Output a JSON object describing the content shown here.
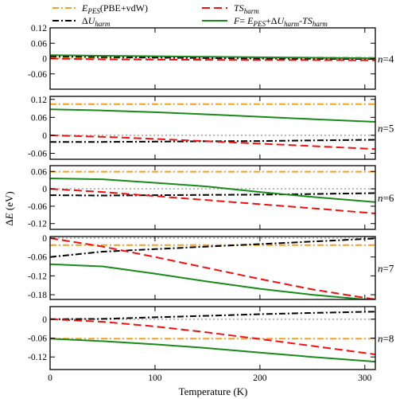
{
  "figure": {
    "ylabel_prefix": "Δ",
    "ylabel_var": "E",
    "ylabel_unit": " (eV)",
    "xlabel": "Temperature (K)"
  },
  "legend": {
    "epes_main": "E",
    "epes_sub": "PES",
    "epes_tail": "(PBE+vdW)",
    "uharm_delta": "Δ",
    "uharm_main": "U",
    "uharm_sub": "harm",
    "tsharm_main": "TS",
    "tsharm_sub": "harm",
    "f_main": "F",
    "f_eq": "= ",
    "f_e": "E",
    "f_e_sub": "PES",
    "f_plus": "+Δ",
    "f_u": "U",
    "f_u_sub": "harm",
    "f_minus": "-",
    "f_ts": "TS",
    "f_ts_sub": "harm"
  },
  "colors": {
    "epes": "#f2a126",
    "uharm": "#000000",
    "tsharm": "#ee1111",
    "f": "#1a8a1a",
    "zero": "#aaaaaa"
  },
  "chart_data": [
    {
      "type": "line",
      "panel_label": "n=4",
      "n_var": "n",
      "n_value": "=4",
      "xlim": [
        0,
        310
      ],
      "ylim": [
        -0.12,
        0.12
      ],
      "yticks": [
        0.12,
        0.06,
        0,
        -0.06
      ],
      "ytick_labels": [
        "0.12",
        "0.06",
        "0",
        "-0.06"
      ],
      "xticks": [
        0,
        100,
        200,
        300
      ],
      "xtick_labels": [],
      "zero_line": true,
      "series": [
        {
          "key": "epes",
          "x": [
            0,
            310
          ],
          "y": [
            0.004,
            0.004
          ]
        },
        {
          "key": "uharm",
          "x": [
            0,
            50,
            100,
            150,
            200,
            250,
            310
          ],
          "y": [
            0.009,
            0.006,
            0.004,
            0.002,
            0.0,
            -0.001,
            -0.002
          ]
        },
        {
          "key": "tsharm",
          "x": [
            0,
            50,
            100,
            150,
            200,
            250,
            310
          ],
          "y": [
            0.0,
            -0.003,
            -0.004,
            -0.005,
            -0.006,
            -0.006,
            -0.007
          ]
        },
        {
          "key": "f",
          "x": [
            0,
            50,
            100,
            150,
            200,
            250,
            310
          ],
          "y": [
            0.013,
            0.011,
            0.009,
            0.007,
            0.005,
            0.003,
            0.001
          ]
        }
      ]
    },
    {
      "type": "line",
      "panel_label": "n=5",
      "n_var": "n",
      "n_value": "=5",
      "xlim": [
        0,
        310
      ],
      "ylim": [
        -0.08,
        0.13
      ],
      "yticks": [
        0.12,
        0.06,
        0,
        -0.06
      ],
      "ytick_labels": [
        "0.12",
        "0.06",
        "0",
        "-0.06"
      ],
      "xticks": [
        0,
        100,
        200,
        300
      ],
      "xtick_labels": [],
      "zero_line": true,
      "series": [
        {
          "key": "epes",
          "x": [
            0,
            310
          ],
          "y": [
            0.104,
            0.104
          ]
        },
        {
          "key": "uharm",
          "x": [
            0,
            50,
            100,
            150,
            200,
            250,
            310
          ],
          "y": [
            -0.022,
            -0.022,
            -0.021,
            -0.02,
            -0.019,
            -0.017,
            -0.015
          ]
        },
        {
          "key": "tsharm",
          "x": [
            0,
            50,
            100,
            150,
            200,
            250,
            310
          ],
          "y": [
            0.0,
            -0.005,
            -0.012,
            -0.02,
            -0.028,
            -0.036,
            -0.046
          ]
        },
        {
          "key": "f",
          "x": [
            0,
            50,
            100,
            150,
            200,
            250,
            310
          ],
          "y": [
            0.087,
            0.083,
            0.077,
            0.07,
            0.062,
            0.054,
            0.045
          ]
        }
      ]
    },
    {
      "type": "line",
      "panel_label": "n=6",
      "n_var": "n",
      "n_value": "=6",
      "xlim": [
        0,
        310
      ],
      "ylim": [
        -0.14,
        0.08
      ],
      "yticks": [
        0.06,
        0,
        -0.06,
        -0.12
      ],
      "ytick_labels": [
        "0.06",
        "0",
        "-0.06",
        "-0.12"
      ],
      "xticks": [
        0,
        100,
        200,
        300
      ],
      "xtick_labels": [],
      "zero_line": true,
      "series": [
        {
          "key": "epes",
          "x": [
            0,
            310
          ],
          "y": [
            0.059,
            0.059
          ]
        },
        {
          "key": "uharm",
          "x": [
            0,
            50,
            100,
            150,
            200,
            250,
            310
          ],
          "y": [
            -0.022,
            -0.023,
            -0.022,
            -0.021,
            -0.02,
            -0.018,
            -0.015
          ]
        },
        {
          "key": "tsharm",
          "x": [
            0,
            50,
            100,
            150,
            200,
            250,
            310
          ],
          "y": [
            0.0,
            -0.011,
            -0.025,
            -0.039,
            -0.053,
            -0.067,
            -0.085
          ]
        },
        {
          "key": "f",
          "x": [
            0,
            50,
            100,
            150,
            200,
            250,
            310
          ],
          "y": [
            0.036,
            0.033,
            0.021,
            0.008,
            -0.011,
            -0.028,
            -0.046
          ]
        }
      ]
    },
    {
      "type": "line",
      "panel_label": "n=7",
      "n_var": "n",
      "n_value": "=7",
      "xlim": [
        0,
        310
      ],
      "ylim": [
        -0.195,
        0.005
      ],
      "yticks": [
        0,
        -0.06,
        -0.12,
        -0.18
      ],
      "ytick_labels": [
        "0",
        "-0.06",
        "-0.12",
        "-0.18"
      ],
      "xticks": [
        0,
        100,
        200,
        300
      ],
      "xtick_labels": [],
      "zero_line": true,
      "series": [
        {
          "key": "epes",
          "x": [
            0,
            310
          ],
          "y": [
            -0.022,
            -0.022
          ]
        },
        {
          "key": "uharm",
          "x": [
            0,
            50,
            100,
            150,
            200,
            250,
            310
          ],
          "y": [
            -0.06,
            -0.043,
            -0.035,
            -0.027,
            -0.019,
            -0.011,
            -0.001
          ]
        },
        {
          "key": "tsharm",
          "x": [
            0,
            50,
            100,
            150,
            200,
            250,
            310
          ],
          "y": [
            0.0,
            -0.027,
            -0.06,
            -0.095,
            -0.13,
            -0.163,
            -0.195
          ]
        },
        {
          "key": "f",
          "x": [
            0,
            50,
            100,
            150,
            200,
            250,
            310
          ],
          "y": [
            -0.083,
            -0.09,
            -0.113,
            -0.138,
            -0.161,
            -0.18,
            -0.198
          ]
        }
      ]
    },
    {
      "type": "line",
      "panel_label": "n=8",
      "n_var": "n",
      "n_value": "=8",
      "xlim": [
        0,
        310
      ],
      "ylim": [
        -0.16,
        0.04
      ],
      "yticks": [
        0,
        -0.06,
        -0.12
      ],
      "ytick_labels": [
        "0",
        "-0.06",
        "-0.12"
      ],
      "xticks": [
        0,
        100,
        200,
        300
      ],
      "xtick_labels": [
        "0",
        "100",
        "200",
        "300"
      ],
      "zero_line": true,
      "series": [
        {
          "key": "epes",
          "x": [
            0,
            310
          ],
          "y": [
            -0.062,
            -0.062
          ]
        },
        {
          "key": "uharm",
          "x": [
            0,
            50,
            100,
            150,
            200,
            250,
            310
          ],
          "y": [
            0.0,
            0.001,
            0.006,
            0.011,
            0.016,
            0.02,
            0.024
          ]
        },
        {
          "key": "tsharm",
          "x": [
            0,
            50,
            100,
            150,
            200,
            250,
            310
          ],
          "y": [
            0.0,
            -0.008,
            -0.023,
            -0.042,
            -0.063,
            -0.085,
            -0.112
          ]
        },
        {
          "key": "f",
          "x": [
            0,
            50,
            100,
            150,
            200,
            250,
            310
          ],
          "y": [
            -0.062,
            -0.07,
            -0.08,
            -0.092,
            -0.106,
            -0.12,
            -0.135
          ]
        }
      ]
    }
  ]
}
